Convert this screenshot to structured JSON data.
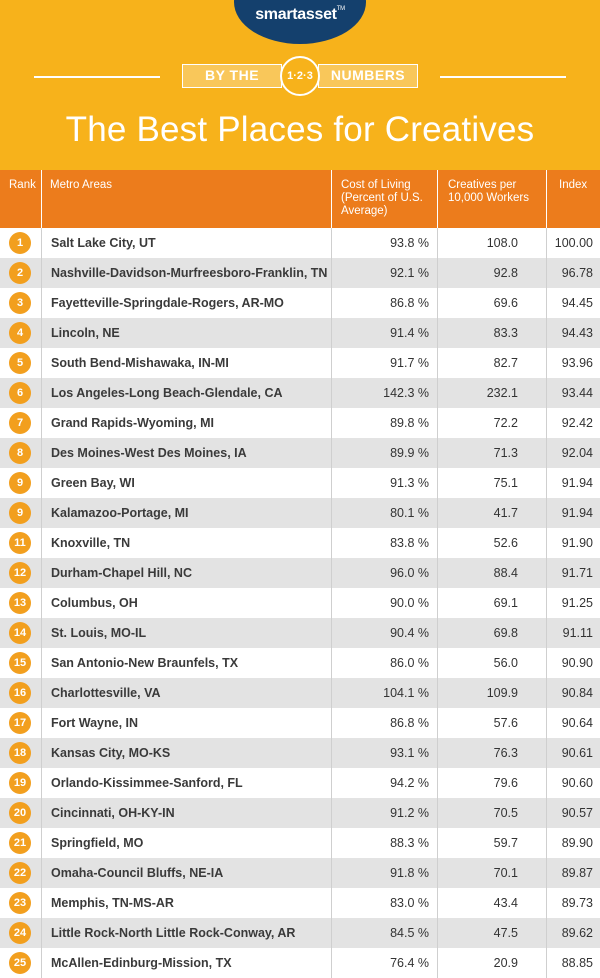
{
  "brand": {
    "name": "smartasset",
    "tm": "TM"
  },
  "banner": {
    "left": "BY THE",
    "center": "1·2·3",
    "right": "NUMBERS"
  },
  "title": "The Best Places for Creatives",
  "colors": {
    "header_bg": "#f7b21b",
    "table_header_bg": "#ec7c1c",
    "rank_circle": "#f29f1e",
    "logo_bg": "#14406d",
    "stripe": "#e3e3e3"
  },
  "table": {
    "headers": {
      "rank": "Rank",
      "metro": "Metro Areas",
      "col_line1": "Cost of Living",
      "col_line2": "(Percent of U.S.",
      "col_line3": "Average)",
      "cre_line1": "Creatives per",
      "cre_line2": "10,000 Workers",
      "index": "Index"
    },
    "rows": [
      {
        "rank": "1",
        "metro": "Salt Lake City, UT",
        "col": "93.8 %",
        "cre": "108.0",
        "index": "100.00"
      },
      {
        "rank": "2",
        "metro": "Nashville-Davidson-Murfreesboro-Franklin, TN",
        "col": "92.1 %",
        "cre": "92.8",
        "index": "96.78"
      },
      {
        "rank": "3",
        "metro": "Fayetteville-Springdale-Rogers, AR-MO",
        "col": "86.8 %",
        "cre": "69.6",
        "index": "94.45"
      },
      {
        "rank": "4",
        "metro": "Lincoln, NE",
        "col": "91.4 %",
        "cre": "83.3",
        "index": "94.43"
      },
      {
        "rank": "5",
        "metro": "South Bend-Mishawaka, IN-MI",
        "col": "91.7 %",
        "cre": "82.7",
        "index": "93.96"
      },
      {
        "rank": "6",
        "metro": "Los Angeles-Long Beach-Glendale, CA",
        "col": "142.3 %",
        "cre": "232.1",
        "index": "93.44"
      },
      {
        "rank": "7",
        "metro": "Grand Rapids-Wyoming, MI",
        "col": "89.8 %",
        "cre": "72.2",
        "index": "92.42"
      },
      {
        "rank": "8",
        "metro": "Des Moines-West Des Moines, IA",
        "col": "89.9 %",
        "cre": "71.3",
        "index": "92.04"
      },
      {
        "rank": "9",
        "metro": "Green Bay, WI",
        "col": "91.3 %",
        "cre": "75.1",
        "index": "91.94"
      },
      {
        "rank": "9",
        "metro": "Kalamazoo-Portage, MI",
        "col": "80.1 %",
        "cre": "41.7",
        "index": "91.94"
      },
      {
        "rank": "11",
        "metro": "Knoxville, TN",
        "col": "83.8 %",
        "cre": "52.6",
        "index": "91.90"
      },
      {
        "rank": "12",
        "metro": "Durham-Chapel Hill, NC",
        "col": "96.0 %",
        "cre": "88.4",
        "index": "91.71"
      },
      {
        "rank": "13",
        "metro": "Columbus, OH",
        "col": "90.0 %",
        "cre": "69.1",
        "index": "91.25"
      },
      {
        "rank": "14",
        "metro": "St. Louis, MO-IL",
        "col": "90.4 %",
        "cre": "69.8",
        "index": "91.11"
      },
      {
        "rank": "15",
        "metro": "San Antonio-New Braunfels, TX",
        "col": "86.0 %",
        "cre": "56.0",
        "index": "90.90"
      },
      {
        "rank": "16",
        "metro": "Charlottesville, VA",
        "col": "104.1 %",
        "cre": "109.9",
        "index": "90.84"
      },
      {
        "rank": "17",
        "metro": "Fort Wayne, IN",
        "col": "86.8 %",
        "cre": "57.6",
        "index": "90.64"
      },
      {
        "rank": "18",
        "metro": "Kansas City, MO-KS",
        "col": "93.1 %",
        "cre": "76.3",
        "index": "90.61"
      },
      {
        "rank": "19",
        "metro": "Orlando-Kissimmee-Sanford, FL",
        "col": "94.2 %",
        "cre": "79.6",
        "index": "90.60"
      },
      {
        "rank": "20",
        "metro": "Cincinnati, OH-KY-IN",
        "col": "91.2 %",
        "cre": "70.5",
        "index": "90.57"
      },
      {
        "rank": "21",
        "metro": "Springfield, MO",
        "col": "88.3 %",
        "cre": "59.7",
        "index": "89.90"
      },
      {
        "rank": "22",
        "metro": "Omaha-Council Bluffs, NE-IA",
        "col": "91.8 %",
        "cre": "70.1",
        "index": "89.87"
      },
      {
        "rank": "23",
        "metro": "Memphis, TN-MS-AR",
        "col": "83.0 %",
        "cre": "43.4",
        "index": "89.73"
      },
      {
        "rank": "24",
        "metro": "Little Rock-North Little Rock-Conway, AR",
        "col": "84.5 %",
        "cre": "47.5",
        "index": "89.62"
      },
      {
        "rank": "25",
        "metro": "McAllen-Edinburg-Mission, TX",
        "col": "76.4 %",
        "cre": "20.9",
        "index": "88.85"
      }
    ]
  }
}
